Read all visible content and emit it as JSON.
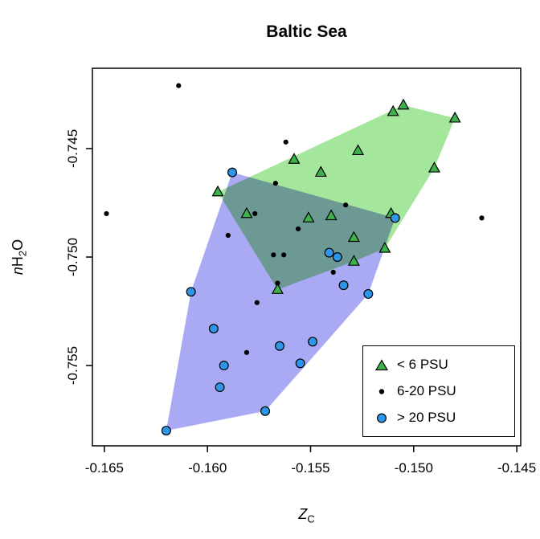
{
  "chart_data": {
    "type": "scatter",
    "title": "Baltic Sea",
    "xlabel": "Z_C",
    "ylabel": "nH2O",
    "xlabel_parts": {
      "italic": "Z",
      "sub": "C"
    },
    "ylabel_parts": {
      "italic": "n",
      "main": "H",
      "sub": "2",
      "tail": "O"
    },
    "axes": {
      "xlim": [
        -0.16558,
        -0.14481
      ],
      "ylim": [
        -0.7587,
        -0.7413
      ],
      "xticks": [
        -0.165,
        -0.16,
        -0.155,
        -0.15,
        -0.145
      ],
      "xtick_labels": [
        "-0.165",
        "-0.160",
        "-0.155",
        "-0.150",
        "-0.145"
      ],
      "yticks": [
        -0.745,
        -0.75,
        -0.755
      ],
      "ytick_labels": [
        "-0.745",
        "-0.750",
        "-0.755"
      ],
      "grid": false
    },
    "legend": {
      "position": "bottom-right",
      "border": true
    },
    "series": [
      {
        "name": "< 6 PSU",
        "marker": "triangle",
        "color": "#3eb24a",
        "edge": "#000000",
        "hull_color": "#a4e79c",
        "points": [
          [
            -0.151,
            -0.7433
          ],
          [
            -0.1505,
            -0.743
          ],
          [
            -0.148,
            -0.7436
          ],
          [
            -0.1527,
            -0.7451
          ],
          [
            -0.1558,
            -0.7455
          ],
          [
            -0.149,
            -0.7459
          ],
          [
            -0.1545,
            -0.7461
          ],
          [
            -0.1595,
            -0.747
          ],
          [
            -0.1581,
            -0.748
          ],
          [
            -0.1551,
            -0.7482
          ],
          [
            -0.154,
            -0.7481
          ],
          [
            -0.1511,
            -0.748
          ],
          [
            -0.1529,
            -0.7491
          ],
          [
            -0.1514,
            -0.7496
          ],
          [
            -0.1529,
            -0.7502
          ],
          [
            -0.1566,
            -0.7515
          ]
        ],
        "hull": [
          [
            -0.1595,
            -0.747
          ],
          [
            -0.1505,
            -0.743
          ],
          [
            -0.148,
            -0.7436
          ],
          [
            -0.149,
            -0.7459
          ],
          [
            -0.1514,
            -0.7496
          ],
          [
            -0.1529,
            -0.7502
          ],
          [
            -0.1566,
            -0.7515
          ]
        ]
      },
      {
        "name": "6-20 PSU",
        "marker": "dot",
        "color": "#000000",
        "points": [
          [
            -0.1614,
            -0.7421
          ],
          [
            -0.1649,
            -0.748
          ],
          [
            -0.1562,
            -0.7447
          ],
          [
            -0.1567,
            -0.7466
          ],
          [
            -0.1467,
            -0.7482
          ],
          [
            -0.1577,
            -0.748
          ],
          [
            -0.1533,
            -0.7476
          ],
          [
            -0.1556,
            -0.7487
          ],
          [
            -0.159,
            -0.749
          ],
          [
            -0.1568,
            -0.7499
          ],
          [
            -0.1563,
            -0.7499
          ],
          [
            -0.1539,
            -0.7507
          ],
          [
            -0.1566,
            -0.7512
          ],
          [
            -0.1576,
            -0.7521
          ],
          [
            -0.1581,
            -0.7544
          ]
        ]
      },
      {
        "name": "> 20 PSU",
        "marker": "circle",
        "color": "#2e96e8",
        "edge": "#000000",
        "hull_color": "#a9a9f4",
        "points": [
          [
            -0.1588,
            -0.7461
          ],
          [
            -0.1509,
            -0.7482
          ],
          [
            -0.1541,
            -0.7498
          ],
          [
            -0.1537,
            -0.75
          ],
          [
            -0.1534,
            -0.7513
          ],
          [
            -0.1522,
            -0.7517
          ],
          [
            -0.1608,
            -0.7516
          ],
          [
            -0.1597,
            -0.7533
          ],
          [
            -0.1565,
            -0.7541
          ],
          [
            -0.1549,
            -0.7539
          ],
          [
            -0.1592,
            -0.755
          ],
          [
            -0.1555,
            -0.7549
          ],
          [
            -0.1594,
            -0.756
          ],
          [
            -0.1572,
            -0.7571
          ],
          [
            -0.162,
            -0.758
          ]
        ],
        "hull": [
          [
            -0.1588,
            -0.7461
          ],
          [
            -0.1509,
            -0.7482
          ],
          [
            -0.1522,
            -0.7517
          ],
          [
            -0.1572,
            -0.7571
          ],
          [
            -0.162,
            -0.758
          ],
          [
            -0.1608,
            -0.7516
          ]
        ]
      }
    ]
  }
}
